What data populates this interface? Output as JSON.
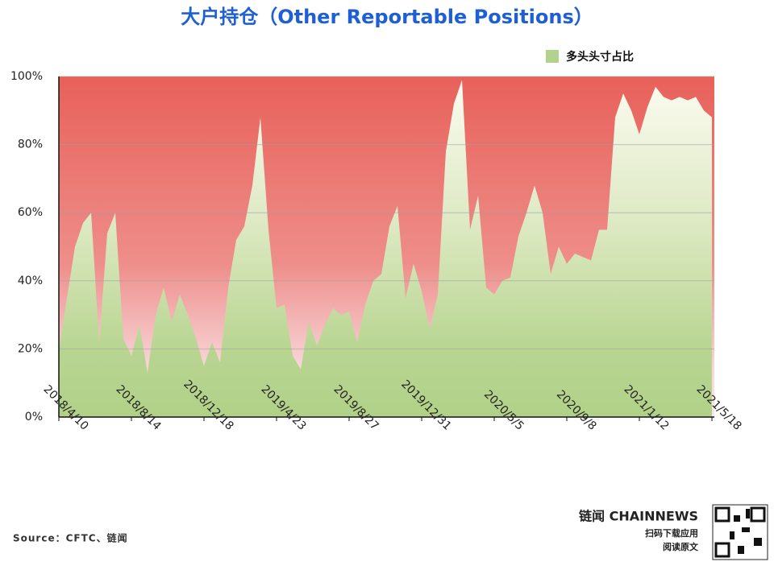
{
  "chart_data": {
    "type": "area",
    "title": "大户持仓（Other Reportable Positions）",
    "categories": [
      "2018/4/10",
      null,
      null,
      null,
      null,
      null,
      null,
      null,
      null,
      "2018/8/14",
      null,
      null,
      null,
      null,
      null,
      null,
      null,
      null,
      "2018/12/18",
      null,
      null,
      null,
      null,
      null,
      null,
      null,
      null,
      "2019/4/23",
      null,
      null,
      null,
      null,
      null,
      null,
      null,
      null,
      "2019/8/27",
      null,
      null,
      null,
      null,
      null,
      null,
      null,
      null,
      "2019/12/31",
      null,
      null,
      null,
      null,
      null,
      null,
      null,
      null,
      "2020/5/5",
      null,
      null,
      null,
      null,
      null,
      null,
      null,
      null,
      "2020/9/8",
      null,
      null,
      null,
      null,
      null,
      null,
      null,
      null,
      "2021/1/12",
      null,
      null,
      null,
      null,
      null,
      null,
      null,
      null,
      "2021/5/18"
    ],
    "series": [
      {
        "name": "多头头寸占比",
        "color": "#b3d38c",
        "values": [
          20,
          35,
          50,
          57,
          60,
          22,
          54,
          60,
          23,
          18,
          27,
          13,
          30,
          38,
          28,
          36,
          30,
          23,
          15,
          22,
          16,
          38,
          52,
          56,
          68,
          88,
          55,
          32,
          33,
          18,
          14,
          28,
          21,
          27,
          32,
          30,
          31,
          22,
          33,
          40,
          42,
          56,
          62,
          35,
          45,
          37,
          26,
          36,
          78,
          92,
          99,
          55,
          65,
          38,
          36,
          40,
          41,
          53,
          60,
          68,
          60,
          42,
          50,
          45,
          48,
          47,
          46,
          55,
          55,
          88,
          95,
          90,
          83,
          91,
          97,
          94,
          93,
          94,
          93,
          94,
          90,
          88
        ]
      }
    ],
    "background_color": "#e8615a",
    "ylim": [
      0,
      100
    ],
    "yticks": [
      {
        "value": 0,
        "label": "0%"
      },
      {
        "value": 20,
        "label": "20%"
      },
      {
        "value": 40,
        "label": "40%"
      },
      {
        "value": 60,
        "label": "60%"
      },
      {
        "value": 80,
        "label": "80%"
      },
      {
        "value": 100,
        "label": "100%"
      }
    ],
    "grid": true,
    "legend": "top-right"
  },
  "footer": {
    "source": "Source：CFTC、链闻",
    "brand": "链闻 CHAINNEWS",
    "download": "扫码下载应用",
    "read": "阅读原文"
  }
}
